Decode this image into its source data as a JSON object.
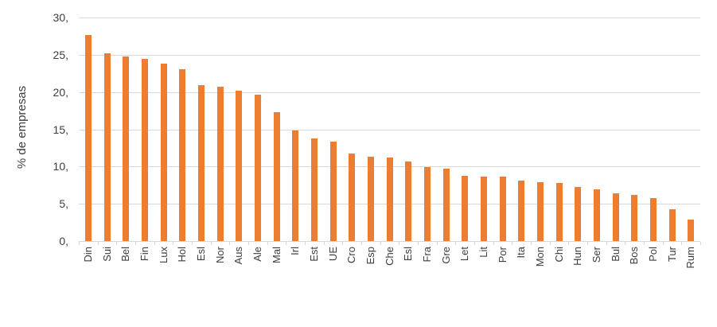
{
  "chart_data": {
    "type": "bar",
    "title": "",
    "xlabel": "",
    "ylabel": "% de empresas",
    "categories": [
      "Din",
      "Sui",
      "Bel",
      "Fin",
      "Lux",
      "Hol",
      "Esl",
      "Nor",
      "Aus",
      "Ale",
      "Mal",
      "Irl",
      "Est",
      "UE",
      "Cro",
      "Esp",
      "Che",
      "Esl",
      "Fra",
      "Gre",
      "Let",
      "Lit",
      "Por",
      "Ita",
      "Mon",
      "Chi",
      "Hun",
      "Ser",
      "Bul",
      "Bos",
      "Pol",
      "Tur",
      "Rum"
    ],
    "values": [
      27.7,
      25.2,
      24.8,
      24.5,
      23.8,
      23.1,
      20.9,
      20.7,
      20.2,
      19.7,
      17.3,
      14.8,
      13.8,
      13.4,
      11.7,
      11.3,
      11.2,
      10.7,
      9.9,
      9.7,
      8.8,
      8.7,
      8.6,
      8.1,
      7.9,
      7.8,
      7.3,
      6.9,
      6.4,
      6.2,
      5.8,
      4.3,
      2.9
    ],
    "ylim": [
      0,
      30
    ],
    "ytick_step": 5,
    "ytick_labels": [
      "0,",
      "5,",
      "10,",
      "15,",
      "20,",
      "25,",
      "30,"
    ],
    "grid": "horizontal",
    "legend": "none",
    "colors": {
      "bar": "#ed7d31",
      "gridline": "#d9d9d9",
      "axis": "#d9d9d9",
      "text": "#3d3d3d"
    }
  }
}
